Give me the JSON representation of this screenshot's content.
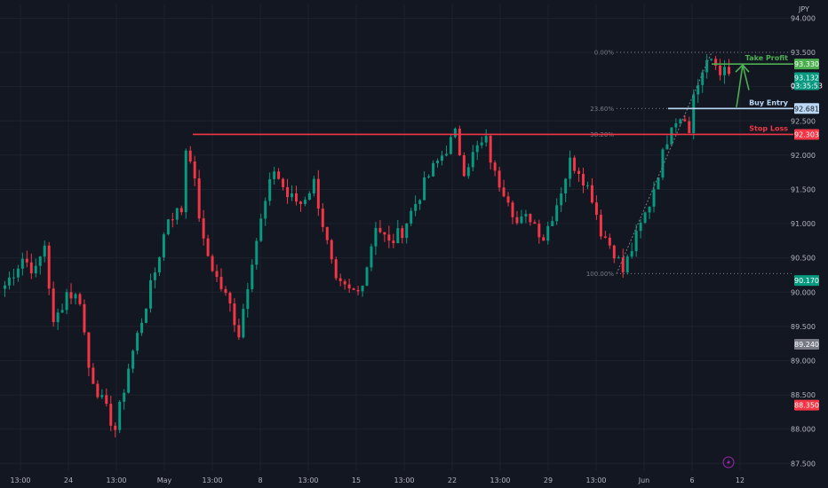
{
  "chart_data": {
    "type": "candlestick",
    "currency": "JPY",
    "ylim": [
      87.4,
      94.2
    ],
    "price_ticks": [
      "94.000",
      "93.500",
      "93.000",
      "92.500",
      "92.000",
      "91.500",
      "91.000",
      "90.500",
      "90.000",
      "89.500",
      "89.000",
      "88.500",
      "88.000",
      "87.500"
    ],
    "time_ticks": [
      "13:00",
      "24",
      "13:00",
      "May",
      "13:00",
      "8",
      "13:00",
      "15",
      "13:00",
      "22",
      "13:00",
      "29",
      "13:00",
      "Jun",
      "6",
      "12"
    ],
    "levels": [
      {
        "name": "Take Profit",
        "value": 93.33,
        "tag": "93.330",
        "color": "#4caf50"
      },
      {
        "name": "Buy Entry",
        "value": 92.681,
        "tag": "92.681",
        "color": "#bbd9f5"
      },
      {
        "name": "Stop Loss",
        "value": 92.303,
        "tag": "92.303",
        "color": "#f23645"
      }
    ],
    "fib_levels": [
      {
        "label": "0.00%",
        "value": 93.5
      },
      {
        "label": "23.60%",
        "value": 92.681
      },
      {
        "label": "38.20%",
        "value": 92.303
      },
      {
        "label": "100.00%",
        "value": 90.27
      }
    ],
    "price_tags": [
      {
        "text": "93.132",
        "sub": "03:35:53",
        "value": 93.132,
        "color": "#089981"
      },
      {
        "text": "90.170",
        "value": 90.17,
        "color": "#089981"
      },
      {
        "text": "89.240",
        "value": 89.24,
        "color": "#787b86"
      },
      {
        "text": "88.350",
        "value": 88.35,
        "color": "#f23645"
      }
    ],
    "anchors": [
      [
        0,
        90.1
      ],
      [
        4,
        90.5
      ],
      [
        7,
        90.3
      ],
      [
        9,
        90.7
      ],
      [
        11,
        89.5
      ],
      [
        14,
        90.0
      ],
      [
        17,
        89.9
      ],
      [
        19,
        88.9
      ],
      [
        22,
        88.4
      ],
      [
        25,
        88.0
      ],
      [
        28,
        88.9
      ],
      [
        31,
        89.6
      ],
      [
        34,
        90.3
      ],
      [
        37,
        91.1
      ],
      [
        40,
        91.2
      ],
      [
        41,
        92.1
      ],
      [
        42,
        92.0
      ],
      [
        45,
        90.7
      ],
      [
        48,
        90.2
      ],
      [
        51,
        89.8
      ],
      [
        53,
        89.4
      ],
      [
        56,
        90.5
      ],
      [
        59,
        91.3
      ],
      [
        61,
        91.8
      ],
      [
        64,
        91.4
      ],
      [
        67,
        91.3
      ],
      [
        70,
        91.6
      ],
      [
        72,
        91.0
      ],
      [
        75,
        90.1
      ],
      [
        78,
        90.0
      ],
      [
        80,
        90.0
      ],
      [
        82,
        90.4
      ],
      [
        84,
        91.0
      ],
      [
        87,
        90.7
      ],
      [
        90,
        90.9
      ],
      [
        93,
        91.3
      ],
      [
        96,
        91.7
      ],
      [
        99,
        92.0
      ],
      [
        102,
        92.3
      ],
      [
        104,
        91.8
      ],
      [
        107,
        92.1
      ],
      [
        109,
        92.2
      ],
      [
        111,
        91.7
      ],
      [
        114,
        91.4
      ],
      [
        116,
        91.0
      ],
      [
        119,
        91.1
      ],
      [
        122,
        90.8
      ],
      [
        125,
        91.3
      ],
      [
        128,
        91.9
      ],
      [
        130,
        91.8
      ],
      [
        133,
        91.4
      ],
      [
        135,
        90.9
      ],
      [
        138,
        90.6
      ],
      [
        140,
        90.3
      ],
      [
        143,
        90.8
      ],
      [
        146,
        91.3
      ],
      [
        149,
        92.0
      ],
      [
        151,
        92.5
      ],
      [
        154,
        92.6
      ],
      [
        155,
        92.3
      ],
      [
        156,
        92.9
      ],
      [
        158,
        93.2
      ],
      [
        160,
        93.4
      ],
      [
        162,
        93.25
      ],
      [
        164,
        93.15
      ]
    ]
  },
  "labels": {
    "currency": "JPY",
    "take_profit": "Take Profit",
    "buy_entry": "Buy Entry",
    "stop_loss": "Stop Loss"
  },
  "colors": {
    "up": "#089981",
    "down": "#f23645",
    "background": "#131722",
    "grid": "#1e222d",
    "take_profit": "#4caf50",
    "buy_entry": "#bbd9f5",
    "stop_loss": "#f23645"
  }
}
